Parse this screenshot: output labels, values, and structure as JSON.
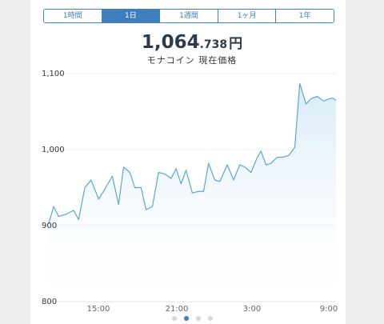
{
  "tabs": [
    {
      "label": "1時間",
      "active": false
    },
    {
      "label": "1日",
      "active": true
    },
    {
      "label": "1週間",
      "active": false
    },
    {
      "label": "1ヶ月",
      "active": false
    },
    {
      "label": "1年",
      "active": false
    }
  ],
  "price": {
    "integer": "1,064",
    "decimal": ".738",
    "unit": "円"
  },
  "subtitle": "モナコイン 現在価格",
  "colors": {
    "accent": "#3f7fbd",
    "line": "#5aa6d6",
    "fill": "#d7ebf8",
    "text": "#2d3b4a"
  },
  "pager": {
    "count": 4,
    "active_index": 1
  },
  "chart_data": {
    "type": "area",
    "ylim": [
      800,
      1100
    ],
    "yticks": [
      "1,100",
      "1,000",
      "900",
      "800"
    ],
    "ytick_values": [
      1100,
      1000,
      900,
      800
    ],
    "xticks": [
      "15:00",
      "21:00",
      "3:00",
      "9:00"
    ],
    "xtick_positions": [
      3,
      9,
      15,
      21
    ],
    "xlim": [
      -1.05,
      22
    ],
    "grid": true,
    "series": [
      {
        "x": [
          -1.0,
          -0.6,
          -0.2,
          0.4,
          1.0,
          1.4,
          1.9,
          2.4,
          3.0,
          3.5,
          4.1,
          4.6,
          5.0,
          5.5,
          5.9,
          6.4,
          6.8,
          7.3,
          7.8,
          8.3,
          8.8,
          9.2,
          9.6,
          10.0,
          10.5,
          11.0,
          11.4,
          11.8,
          12.3,
          12.7,
          13.3,
          13.8,
          14.3,
          14.7,
          15.2,
          15.7,
          16.0,
          16.4,
          16.8,
          17.3,
          17.7,
          18.2,
          18.7,
          19.1,
          19.6,
          20.0,
          20.5,
          21.0,
          21.3,
          21.7,
          22.0
        ],
        "y": [
          902,
          925,
          912,
          915,
          920,
          908,
          950,
          960,
          935,
          948,
          965,
          928,
          977,
          970,
          950,
          950,
          921,
          925,
          970,
          968,
          962,
          975,
          955,
          973,
          943,
          945,
          945,
          982,
          960,
          958,
          980,
          960,
          980,
          977,
          970,
          990,
          998,
          980,
          982,
          990,
          990,
          992,
          1003,
          1087,
          1060,
          1067,
          1070,
          1064,
          1066,
          1068,
          1065
        ]
      }
    ]
  }
}
